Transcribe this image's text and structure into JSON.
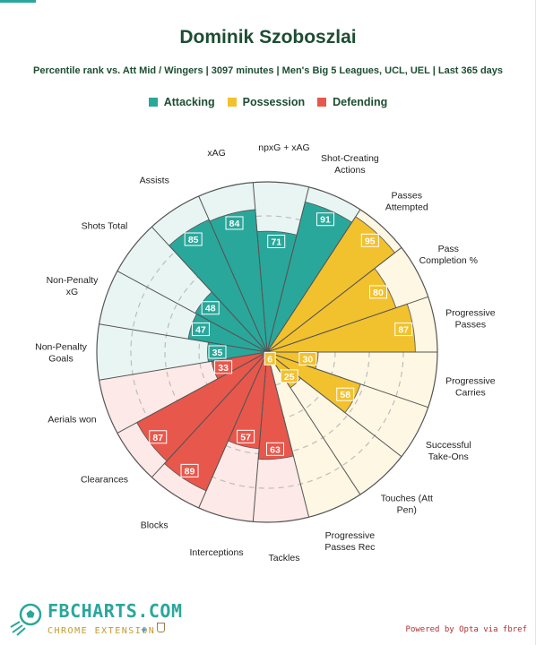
{
  "title": "Dominik Szoboszlai",
  "subtitle": "Percentile rank vs. Att Mid / Wingers | 3097 minutes | Men's Big 5 Leagues, UCL, UEL | Last 365 days",
  "legend": [
    {
      "label": "Attacking",
      "color": "#2aa79b"
    },
    {
      "label": "Possession",
      "color": "#f2c12e"
    },
    {
      "label": "Defending",
      "color": "#e8574b"
    }
  ],
  "branding": {
    "name": "FBCHARTS.COM",
    "sub": "CHROME EXTENSION"
  },
  "powered_by": "Powered by Opta via fbref",
  "chart_data": {
    "type": "polar-bar",
    "title": "Dominik Szoboszlai",
    "rlim": [
      0,
      100
    ],
    "grid": true,
    "categories": [
      {
        "stat": "Non-Penalty Goals",
        "label": [
          "Non-Penalty",
          "Goals"
        ],
        "value": 35,
        "group": "Attacking"
      },
      {
        "stat": "Non-Penalty xG",
        "label": [
          "Non-Penalty",
          "xG"
        ],
        "value": 47,
        "group": "Attacking"
      },
      {
        "stat": "Shots Total",
        "label": [
          "Shots Total"
        ],
        "value": 48,
        "group": "Attacking"
      },
      {
        "stat": "Assists",
        "label": [
          "Assists"
        ],
        "value": 85,
        "group": "Attacking"
      },
      {
        "stat": "xAG",
        "label": [
          "xAG"
        ],
        "value": 84,
        "group": "Attacking"
      },
      {
        "stat": "npxG + xAG",
        "label": [
          "npxG + xAG"
        ],
        "value": 71,
        "group": "Attacking"
      },
      {
        "stat": "Shot-Creating Actions",
        "label": [
          "Shot-Creating",
          "Actions"
        ],
        "value": 91,
        "group": "Attacking"
      },
      {
        "stat": "Passes Attempted",
        "label": [
          "Passes",
          "Attempted"
        ],
        "value": 95,
        "group": "Possession"
      },
      {
        "stat": "Pass Completion %",
        "label": [
          "Pass",
          "Completion %"
        ],
        "value": 80,
        "group": "Possession"
      },
      {
        "stat": "Progressive Passes",
        "label": [
          "Progressive",
          "Passes"
        ],
        "value": 87,
        "group": "Possession"
      },
      {
        "stat": "Progressive Carries",
        "label": [
          "Progressive",
          "Carries"
        ],
        "value": 30,
        "group": "Possession"
      },
      {
        "stat": "Successful Take-Ons",
        "label": [
          "Successful",
          "Take-Ons"
        ],
        "value": 58,
        "group": "Possession"
      },
      {
        "stat": "Touches (Att Pen)",
        "label": [
          "Touches (Att",
          "Pen)"
        ],
        "value": 25,
        "group": "Possession"
      },
      {
        "stat": "Progressive Passes Rec",
        "label": [
          "Progressive",
          "Passes Rec"
        ],
        "value": 6,
        "group": "Possession"
      },
      {
        "stat": "Tackles",
        "label": [
          "Tackles"
        ],
        "value": 63,
        "group": "Defending"
      },
      {
        "stat": "Interceptions",
        "label": [
          "Interceptions"
        ],
        "value": 57,
        "group": "Defending"
      },
      {
        "stat": "Blocks",
        "label": [
          "Blocks"
        ],
        "value": 89,
        "group": "Defending"
      },
      {
        "stat": "Clearances",
        "label": [
          "Clearances"
        ],
        "value": 87,
        "group": "Defending"
      },
      {
        "stat": "Aerials won",
        "label": [
          "Aerials won"
        ],
        "value": 33,
        "group": "Defending"
      }
    ],
    "group_colors": {
      "Attacking": "#2aa79b",
      "Possession": "#f2c12e",
      "Defending": "#e8574b"
    },
    "background_colors": {
      "Attacking": "#e8f5f3",
      "Possession": "#fdf7e3",
      "Defending": "#fde9e7"
    }
  }
}
